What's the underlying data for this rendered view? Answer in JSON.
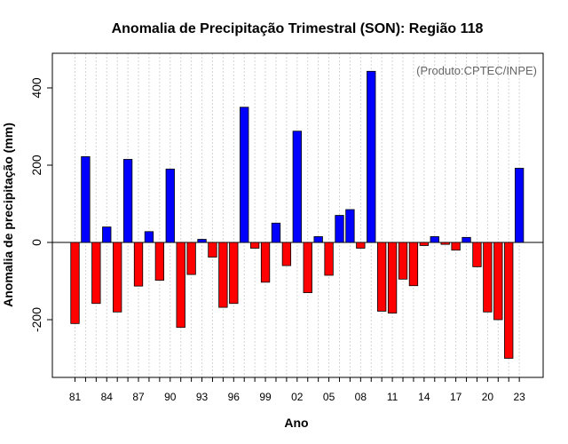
{
  "chart_data": {
    "type": "bar",
    "title": "Anomalia de Precipitação Trimestral (SON): Região 118",
    "xlabel": "Ano",
    "ylabel": "Anomalia de precipitação (mm)",
    "annotation": "(Produto:CPTEC/INPE)",
    "ylim": [
      -350,
      500
    ],
    "yticks": [
      -200,
      0,
      200,
      400
    ],
    "ytick_labels": [
      "-200",
      "0",
      "200",
      "400"
    ],
    "grid": "vertical dotted",
    "years": [
      "81",
      "82",
      "83",
      "84",
      "85",
      "86",
      "87",
      "88",
      "89",
      "90",
      "91",
      "92",
      "93",
      "94",
      "95",
      "96",
      "97",
      "98",
      "99",
      "00",
      "01",
      "02",
      "03",
      "04",
      "05",
      "06",
      "07",
      "08",
      "09",
      "10",
      "11",
      "12",
      "13",
      "14",
      "15",
      "16",
      "17",
      "18",
      "19",
      "20",
      "21",
      "22",
      "23"
    ],
    "values": [
      -210,
      222,
      -158,
      40,
      -180,
      215,
      -113,
      28,
      -98,
      190,
      -220,
      -83,
      8,
      -38,
      -168,
      -158,
      350,
      -15,
      -103,
      50,
      -60,
      288,
      -130,
      15,
      -85,
      70,
      85,
      -15,
      443,
      -178,
      -183,
      -95,
      -112,
      -8,
      15,
      -5,
      -20,
      13,
      -63,
      -180,
      -200,
      -300,
      192
    ],
    "xtick_labels": [
      "81",
      "84",
      "87",
      "90",
      "93",
      "96",
      "99",
      "02",
      "05",
      "08",
      "11",
      "14",
      "17",
      "20",
      "23"
    ],
    "colors": {
      "positive": "#0000ff",
      "negative": "#ff0000",
      "zero_line": "#000000",
      "grid": "#d3d3d3",
      "annotation": "#666666"
    }
  }
}
